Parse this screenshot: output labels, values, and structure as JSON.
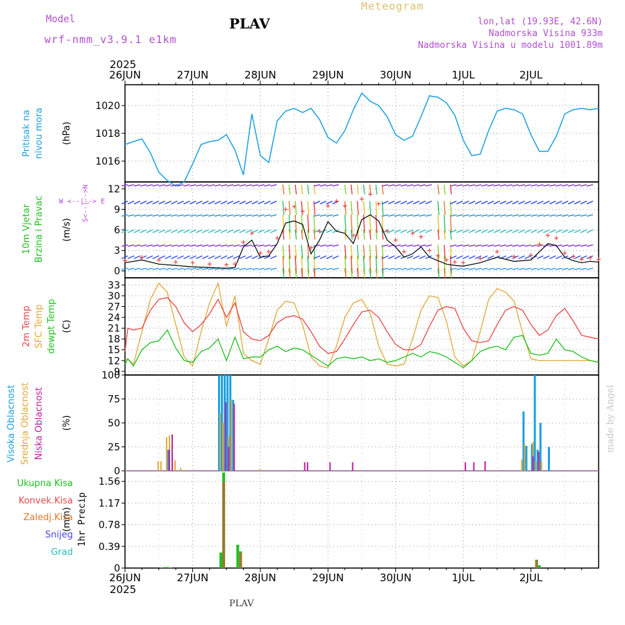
{
  "header": {
    "model_label": "Model",
    "run": "wrf-nmm_v3.9.1  e1km",
    "station": "PLAV",
    "meteogram": "Meteogram",
    "coords": "lon,lat (19.93E, 42.6N)",
    "elevation": "Nadmorska Visina 933m",
    "model_elevation": "Nadmorska Visina u modelu 1001.89m"
  },
  "footer": {
    "station": "PLAV",
    "credit": "made by Angel"
  },
  "colors": {
    "pressure": "#1ca0e0",
    "temp2m": "#e84848",
    "sfctemp": "#e0a838",
    "dewpt": "#20c020",
    "cloud_high": "#1ca0e0",
    "cloud_mid": "#e0a838",
    "cloud_low": "#c020a0",
    "precip_total": "#20c020",
    "precip_conv": "#e84848",
    "precip_frozen": "#e87828",
    "snow": "#4848e0",
    "hail": "#20c0c0",
    "label_purple": "#b050d0"
  },
  "time_axis": {
    "year": "2025",
    "dates": [
      "26JUN",
      "27JUN",
      "28JUN",
      "29JUN",
      "30JUN",
      "1JUL",
      "2JUL"
    ]
  },
  "chart_data": [
    {
      "type": "line",
      "id": "pressure",
      "title": "Pritisak na nivou mora",
      "ylabel": "(hPa)",
      "ylim": [
        1014.5,
        1021.5
      ],
      "yticks": [
        "1016",
        "1018",
        "1020"
      ],
      "ytick_values": [
        1016,
        1018,
        1020
      ],
      "grid": true,
      "series": [
        {
          "t": [
            0,
            3,
            6,
            9,
            12,
            15,
            18,
            21,
            24,
            27,
            30,
            33,
            36,
            39,
            42,
            45,
            48,
            51,
            54,
            57,
            60,
            63,
            66,
            69,
            72,
            75,
            78,
            81,
            84,
            87,
            90,
            93,
            96,
            99,
            102,
            105,
            108,
            111,
            114,
            117,
            120,
            123,
            126,
            129,
            132,
            135,
            138,
            141,
            144,
            147,
            150,
            153,
            156,
            159,
            162,
            165,
            168
          ],
          "values": [
            1017.2,
            1017.4,
            1017.6,
            1016.6,
            1015.2,
            1014.6,
            1014.2,
            1014.5,
            1015.8,
            1017.2,
            1017.4,
            1017.5,
            1017.9,
            1016.8,
            1015.0,
            1019.4,
            1016.4,
            1015.9,
            1018.9,
            1019.6,
            1019.8,
            1019.5,
            1019.8,
            1019.0,
            1017.7,
            1017.3,
            1018.2,
            1019.7,
            1020.9,
            1020.3,
            1020.0,
            1019.2,
            1017.9,
            1017.5,
            1017.8,
            1019.2,
            1020.7,
            1020.6,
            1020.2,
            1019.3,
            1017.5,
            1016.4,
            1016.5,
            1018.2,
            1019.6,
            1019.8,
            1019.7,
            1019.4,
            1017.9,
            1016.7,
            1016.7,
            1017.8,
            1019.4,
            1019.7,
            1019.8,
            1019.7,
            1019.8
          ]
        }
      ]
    },
    {
      "type": "line",
      "id": "wind",
      "title": "10m Vjetar Brzina i Pravac",
      "ylabel": "(m/s)",
      "compass": "W <--|--> E",
      "compass_ns": "S<--|-->N",
      "ylim": [
        -1,
        13
      ],
      "yticks": [
        "0",
        "3",
        "6",
        "9",
        "12"
      ],
      "ytick_values": [
        0,
        3,
        6,
        9,
        12
      ],
      "grid": true,
      "series": [
        {
          "name": "speed",
          "t": [
            0,
            6,
            12,
            18,
            24,
            30,
            36,
            39,
            42,
            45,
            48,
            51,
            54,
            57,
            60,
            63,
            66,
            69,
            72,
            75,
            78,
            81,
            84,
            87,
            90,
            93,
            96,
            99,
            102,
            105,
            108,
            111,
            114,
            117,
            120,
            126,
            132,
            138,
            144,
            147,
            150,
            153,
            156,
            159,
            162,
            165,
            168
          ],
          "values": [
            1.2,
            1.6,
            1.0,
            0.8,
            0.6,
            0.5,
            0.4,
            0.5,
            3.5,
            4.5,
            2.0,
            2.2,
            4.0,
            7.0,
            7.3,
            6.8,
            2.5,
            4.5,
            7.2,
            5.8,
            5.5,
            4.0,
            7.5,
            8.2,
            7.3,
            4.5,
            3.5,
            2.0,
            2.5,
            3.5,
            2.0,
            1.5,
            1.0,
            0.8,
            0.7,
            1.2,
            2.0,
            1.4,
            1.6,
            2.8,
            4.0,
            3.7,
            2.0,
            1.5,
            1.2,
            1.4,
            1.3
          ]
        },
        {
          "name": "gust",
          "t": [
            0,
            6,
            12,
            18,
            24,
            30,
            36,
            39,
            42,
            45,
            48,
            51,
            54,
            57,
            60,
            63,
            66,
            69,
            72,
            75,
            78,
            81,
            84,
            87,
            90,
            93,
            96,
            99,
            102,
            105,
            108,
            111,
            114,
            117,
            120,
            126,
            132,
            138,
            144,
            147,
            150,
            153,
            156,
            159,
            162,
            165,
            168
          ],
          "values": [
            1.5,
            2.0,
            1.6,
            1.3,
            1.2,
            1.0,
            0.9,
            1.0,
            4.2,
            5.5,
            2.6,
            2.8,
            4.8,
            9.0,
            9.4,
            8.7,
            3.4,
            5.8,
            9.5,
            10.2,
            9.5,
            5.2,
            10.5,
            11.2,
            9.8,
            5.8,
            4.5,
            2.8,
            5.5,
            5.0,
            3.0,
            2.2,
            1.6,
            1.3,
            1.2,
            1.8,
            2.8,
            2.1,
            2.3,
            3.9,
            5.2,
            4.8,
            2.6,
            2.1,
            1.7,
            1.9,
            1.7
          ]
        }
      ]
    },
    {
      "type": "line",
      "id": "temperature",
      "title": "2m Temp / SFC Temp / dewpt Temp",
      "ylabel": "(C)",
      "ylim": [
        8,
        35
      ],
      "yticks": [
        "9",
        "12",
        "15",
        "18",
        "21",
        "24",
        "27",
        "30",
        "33"
      ],
      "ytick_values": [
        9,
        12,
        15,
        18,
        21,
        24,
        27,
        30,
        33
      ],
      "grid": true,
      "series": [
        {
          "name": "2m Temp",
          "t": [
            0,
            1,
            3,
            6,
            9,
            12,
            15,
            18,
            21,
            24,
            27,
            30,
            33,
            36,
            39,
            42,
            45,
            48,
            51,
            54,
            57,
            60,
            63,
            66,
            69,
            72,
            75,
            78,
            81,
            84,
            87,
            90,
            93,
            96,
            99,
            102,
            105,
            108,
            111,
            114,
            117,
            120,
            123,
            126,
            129,
            132,
            135,
            138,
            141,
            144,
            147,
            150,
            153,
            156,
            159,
            162,
            165,
            168
          ],
          "values": [
            14.5,
            21.0,
            20.5,
            21.0,
            26.0,
            29.0,
            29.5,
            27.0,
            22.5,
            20.0,
            22.0,
            25.0,
            29.0,
            24.0,
            28.0,
            20.0,
            18.0,
            17.5,
            19.0,
            22.5,
            24.0,
            24.5,
            23.5,
            20.0,
            16.0,
            14.0,
            14.5,
            18.0,
            22.0,
            25.5,
            26.0,
            24.0,
            20.0,
            16.5,
            15.0,
            15.0,
            16.5,
            21.5,
            26.0,
            27.0,
            26.5,
            21.0,
            17.5,
            17.0,
            17.5,
            22.0,
            26.0,
            27.0,
            26.0,
            22.0,
            19.0,
            20.5,
            24.5,
            26.5,
            23.0,
            19.0,
            18.5,
            18.0
          ]
        },
        {
          "name": "SFC Temp",
          "t": [
            0,
            1,
            3,
            6,
            9,
            12,
            15,
            18,
            21,
            24,
            27,
            30,
            33,
            36,
            39,
            42,
            45,
            48,
            51,
            54,
            57,
            60,
            63,
            66,
            69,
            72,
            75,
            78,
            81,
            84,
            87,
            90,
            93,
            96,
            99,
            102,
            105,
            108,
            111,
            114,
            117,
            120,
            123,
            126,
            129,
            132,
            135,
            138,
            141,
            144,
            147,
            150,
            153,
            156,
            159,
            162,
            165,
            168
          ],
          "values": [
            12.0,
            12.5,
            11.0,
            20.0,
            29.0,
            33.5,
            31.0,
            22.0,
            13.0,
            10.5,
            20.0,
            28.0,
            33.5,
            21.5,
            30.0,
            14.0,
            12.0,
            11.0,
            18.0,
            26.0,
            28.5,
            28.0,
            22.0,
            13.0,
            10.5,
            10.0,
            16.0,
            24.0,
            28.0,
            29.0,
            25.0,
            16.0,
            11.0,
            10.5,
            11.0,
            18.0,
            26.0,
            30.0,
            29.5,
            23.0,
            13.0,
            10.5,
            12.0,
            20.0,
            29.0,
            32.0,
            31.0,
            28.5,
            20.0,
            12.5,
            12.0,
            12.0,
            12.0,
            12.0,
            12.0,
            12.0,
            12.0,
            11.5
          ]
        },
        {
          "name": "dewpt Temp",
          "t": [
            0,
            1,
            3,
            6,
            9,
            12,
            15,
            18,
            21,
            24,
            27,
            30,
            33,
            36,
            39,
            42,
            45,
            48,
            51,
            54,
            57,
            60,
            63,
            66,
            69,
            72,
            75,
            78,
            81,
            84,
            87,
            90,
            93,
            96,
            99,
            102,
            105,
            108,
            111,
            114,
            117,
            120,
            123,
            126,
            129,
            132,
            135,
            138,
            141,
            144,
            147,
            150,
            153,
            156,
            159,
            162,
            165,
            168
          ],
          "values": [
            11.0,
            12.5,
            10.5,
            15.0,
            17.0,
            17.5,
            20.5,
            15.5,
            12.0,
            11.5,
            14.5,
            15.5,
            18.0,
            12.0,
            18.5,
            12.5,
            13.0,
            13.0,
            15.0,
            16.0,
            14.5,
            15.5,
            15.0,
            13.5,
            12.0,
            10.5,
            12.5,
            13.0,
            12.5,
            13.0,
            12.0,
            12.5,
            11.5,
            12.0,
            13.0,
            14.0,
            13.0,
            14.5,
            14.0,
            13.0,
            11.5,
            10.0,
            12.0,
            14.5,
            15.5,
            16.0,
            15.0,
            18.5,
            19.0,
            14.0,
            13.5,
            14.0,
            18.0,
            15.0,
            14.5,
            13.0,
            12.0,
            11.5
          ]
        }
      ]
    },
    {
      "type": "bar",
      "id": "cloud",
      "title": "Visoka Oblacnost / Srednja Oblacnost / Niska Oblacnost",
      "ylabel": "(%)",
      "ylim": [
        0,
        100
      ],
      "yticks": [
        "0",
        "25",
        "50",
        "75",
        "100"
      ],
      "ytick_values": [
        0,
        25,
        50,
        75,
        100
      ],
      "grid": true,
      "series": [
        {
          "name": "Visoka Oblacnost",
          "t": [
            15,
            33,
            34,
            35,
            36,
            37,
            38,
            141,
            142,
            144,
            145,
            146,
            147,
            150
          ],
          "values": [
            22,
            100,
            100,
            100,
            100,
            100,
            74,
            62,
            26,
            28,
            100,
            22,
            50,
            25
          ]
        },
        {
          "name": "Srednja Oblacnost",
          "t": [
            12,
            13,
            15,
            16,
            18,
            20,
            22,
            34,
            35,
            36,
            37,
            38,
            48,
            141,
            142,
            145,
            146,
            147,
            148
          ],
          "values": [
            10,
            10,
            35,
            37,
            11,
            3,
            1,
            60,
            50,
            42,
            36,
            74,
            2,
            12,
            28,
            30,
            10,
            15,
            10
          ]
        },
        {
          "name": "Niska Oblacnost",
          "t": [
            15,
            16,
            35,
            36,
            38,
            63,
            64,
            72,
            80,
            120,
            123,
            127,
            144,
            146
          ],
          "values": [
            22,
            38,
            72,
            25,
            70,
            9,
            9,
            9,
            9,
            9,
            9,
            10,
            15,
            20
          ]
        }
      ]
    },
    {
      "type": "bar",
      "id": "precip",
      "title": "1hr Precip",
      "ylabel": "(mm)",
      "ylim": [
        0,
        1.75
      ],
      "yticks": [
        "0",
        "0.39",
        "0.78",
        "1.17",
        "1.56"
      ],
      "ytick_values": [
        0,
        0.39,
        0.78,
        1.17,
        1.56
      ],
      "grid": true,
      "series": [
        {
          "name": "Ukupna Kisa",
          "t": [
            13,
            15,
            16,
            34,
            35,
            40,
            41,
            146,
            147
          ],
          "values": [
            0.01,
            0.02,
            0.01,
            0.28,
            1.72,
            0.42,
            0.3,
            0.15,
            0.05
          ]
        },
        {
          "name": "Konvek.Kisa",
          "t": [
            35,
            41,
            146
          ],
          "values": [
            1.55,
            0.28,
            0.14
          ]
        }
      ]
    }
  ],
  "legends": {
    "precip": [
      "Ukupna Kisa",
      "Konvek.Kisa",
      "Zaledj.Kisa",
      "Snijeg",
      "Grad"
    ],
    "cloud": [
      "Visoka Oblacnost",
      "Srednja Oblacnost",
      "Niska Oblacnost"
    ],
    "temp": [
      "2m Temp",
      "SFC Temp",
      "dewpt Temp"
    ],
    "pressure": [
      "Pritisak na",
      "nivou mora"
    ],
    "wind": [
      "10m Vjetar",
      "Brzina i Pravac"
    ]
  }
}
